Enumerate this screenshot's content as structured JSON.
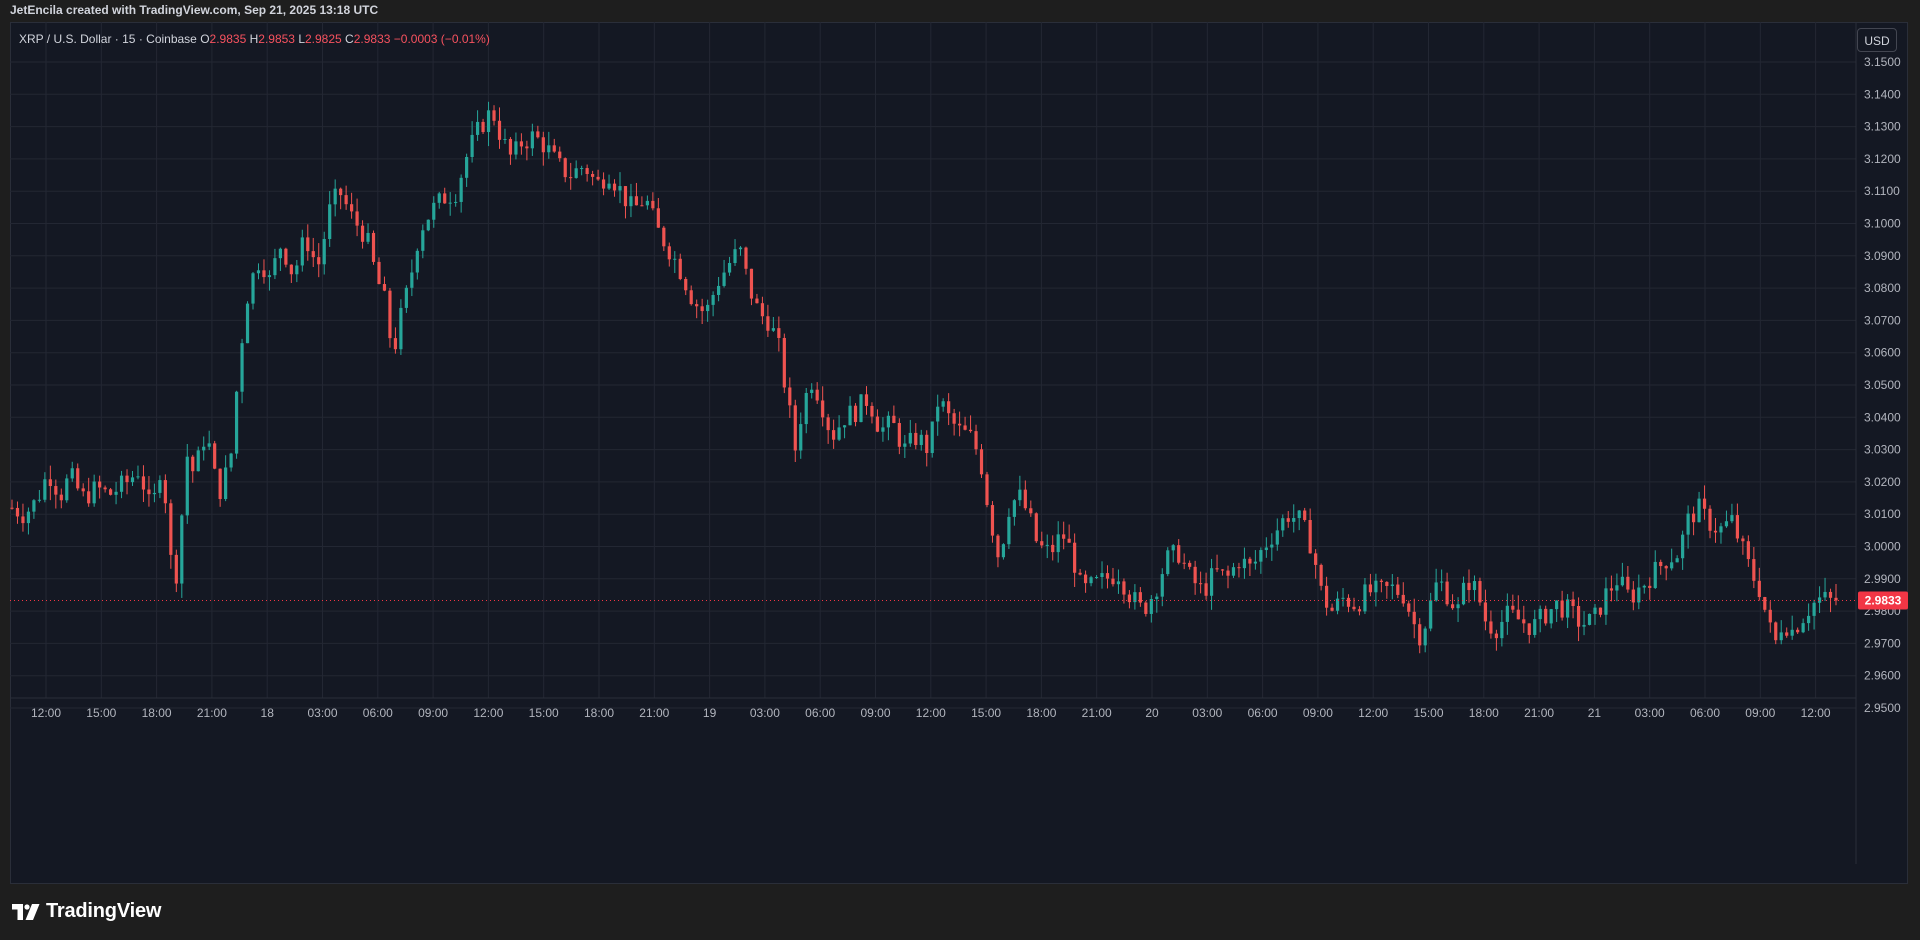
{
  "credit": "JetEncila created with TradingView.com, Sep 21, 2025 13:18 UTC",
  "legend": {
    "symbol": "XRP / U.S. Dollar · 15 · Coinbase",
    "o_label": "O",
    "o_value": "2.9835",
    "h_label": "H",
    "h_value": "2.9853",
    "l_label": "L",
    "l_value": "2.9825",
    "c_label": "C",
    "c_value": "2.9833",
    "change": "−0.0003 (−0.01%)"
  },
  "currency_button": "USD",
  "brand": "TradingView",
  "colors": {
    "up": "#26a69a",
    "down": "#ef5350",
    "background": "#141823",
    "grid": "#232733",
    "price_tag": "#f23645"
  },
  "chart_data": {
    "type": "candlestick",
    "title": "XRP / U.S. Dollar · 15 · Coinbase",
    "interval": "15",
    "ylim": [
      2.945,
      3.155
    ],
    "y_ticks": [
      "3.1500",
      "3.1400",
      "3.1300",
      "3.1200",
      "3.1100",
      "3.1000",
      "3.0900",
      "3.0800",
      "3.0700",
      "3.0600",
      "3.0500",
      "3.0400",
      "3.0300",
      "3.0200",
      "3.0100",
      "3.0000",
      "2.9900",
      "2.9800",
      "2.9700",
      "2.9600",
      "2.9500"
    ],
    "x_ticks": [
      "12:00",
      "15:00",
      "18:00",
      "21:00",
      "18",
      "03:00",
      "06:00",
      "09:00",
      "12:00",
      "15:00",
      "18:00",
      "21:00",
      "19",
      "03:00",
      "06:00",
      "09:00",
      "12:00",
      "15:00",
      "18:00",
      "21:00",
      "20",
      "03:00",
      "06:00",
      "09:00",
      "12:00",
      "15:00",
      "18:00",
      "21:00",
      "21",
      "03:00",
      "06:00",
      "09:00",
      "12:00"
    ],
    "last_price": "2.9833",
    "last_price_value": 2.9833,
    "close_path": [
      [
        0,
        3.012
      ],
      [
        10,
        3.01
      ],
      [
        20,
        3.014
      ],
      [
        30,
        3.023
      ],
      [
        40,
        3.016
      ],
      [
        48,
        3.022
      ],
      [
        58,
        3.015
      ],
      [
        70,
        3.018
      ],
      [
        80,
        3.016
      ],
      [
        95,
        3.02
      ],
      [
        105,
        3.024
      ],
      [
        115,
        3.01
      ],
      [
        125,
        3.03
      ],
      [
        128,
        3.0
      ],
      [
        135,
        2.99
      ],
      [
        140,
        3.01
      ],
      [
        145,
        3.03
      ],
      [
        150,
        3.022
      ],
      [
        160,
        3.036
      ],
      [
        170,
        3.016
      ],
      [
        180,
        3.026
      ],
      [
        188,
        3.06
      ],
      [
        195,
        3.08
      ],
      [
        205,
        3.09
      ],
      [
        212,
        3.082
      ],
      [
        222,
        3.094
      ],
      [
        232,
        3.084
      ],
      [
        242,
        3.096
      ],
      [
        252,
        3.086
      ],
      [
        262,
        3.104
      ],
      [
        270,
        3.11
      ],
      [
        280,
        3.102
      ],
      [
        292,
        3.096
      ],
      [
        300,
        3.084
      ],
      [
        308,
        3.075
      ],
      [
        314,
        3.059
      ],
      [
        320,
        3.07
      ],
      [
        328,
        3.082
      ],
      [
        336,
        3.098
      ],
      [
        346,
        3.104
      ],
      [
        356,
        3.108
      ],
      [
        366,
        3.11
      ],
      [
        376,
        3.122
      ],
      [
        386,
        3.13
      ],
      [
        396,
        3.135
      ],
      [
        404,
        3.126
      ],
      [
        412,
        3.12
      ],
      [
        420,
        3.125
      ],
      [
        430,
        3.127
      ],
      [
        440,
        3.124
      ],
      [
        450,
        3.118
      ],
      [
        460,
        3.115
      ],
      [
        472,
        3.118
      ],
      [
        482,
        3.112
      ],
      [
        492,
        3.116
      ],
      [
        502,
        3.11
      ],
      [
        512,
        3.104
      ],
      [
        522,
        3.108
      ],
      [
        532,
        3.098
      ],
      [
        542,
        3.092
      ],
      [
        552,
        3.085
      ],
      [
        562,
        3.076
      ],
      [
        572,
        3.072
      ],
      [
        582,
        3.082
      ],
      [
        592,
        3.088
      ],
      [
        600,
        3.092
      ],
      [
        608,
        3.08
      ],
      [
        616,
        3.072
      ],
      [
        624,
        3.07
      ],
      [
        632,
        3.062
      ],
      [
        640,
        3.044
      ],
      [
        646,
        3.03
      ],
      [
        652,
        3.044
      ],
      [
        660,
        3.052
      ],
      [
        668,
        3.044
      ],
      [
        676,
        3.034
      ],
      [
        686,
        3.04
      ],
      [
        696,
        3.042
      ],
      [
        706,
        3.046
      ],
      [
        716,
        3.036
      ],
      [
        726,
        3.038
      ],
      [
        736,
        3.03
      ],
      [
        746,
        3.034
      ],
      [
        756,
        3.03
      ],
      [
        764,
        3.046
      ],
      [
        772,
        3.04
      ],
      [
        780,
        3.036
      ],
      [
        790,
        3.034
      ],
      [
        798,
        3.028
      ],
      [
        806,
        3.01
      ],
      [
        814,
        2.996
      ],
      [
        822,
        3.012
      ],
      [
        830,
        3.016
      ],
      [
        838,
        3.01
      ],
      [
        846,
        3.0
      ],
      [
        856,
        2.998
      ],
      [
        866,
        3.004
      ],
      [
        874,
        2.998
      ],
      [
        882,
        2.986
      ],
      [
        892,
        2.988
      ],
      [
        902,
        2.99
      ],
      [
        912,
        2.992
      ],
      [
        922,
        2.985
      ],
      [
        932,
        2.98
      ],
      [
        942,
        2.986
      ],
      [
        952,
        2.996
      ],
      [
        962,
        2.998
      ],
      [
        972,
        2.99
      ],
      [
        982,
        2.986
      ],
      [
        992,
        2.992
      ],
      [
        1002,
        2.99
      ],
      [
        1012,
        2.996
      ],
      [
        1022,
        2.993
      ],
      [
        1032,
        3.0
      ],
      [
        1042,
        3.005
      ],
      [
        1052,
        3.01
      ],
      [
        1062,
        3.008
      ],
      [
        1072,
        3.0
      ],
      [
        1080,
        2.985
      ],
      [
        1088,
        2.98
      ],
      [
        1098,
        2.984
      ],
      [
        1108,
        2.982
      ],
      [
        1118,
        2.986
      ],
      [
        1128,
        2.986
      ],
      [
        1138,
        2.987
      ],
      [
        1148,
        2.985
      ],
      [
        1156,
        2.976
      ],
      [
        1162,
        2.972
      ],
      [
        1168,
        2.98
      ],
      [
        1176,
        2.99
      ],
      [
        1184,
        2.985
      ],
      [
        1192,
        2.98
      ],
      [
        1200,
        2.99
      ],
      [
        1208,
        2.986
      ],
      [
        1216,
        2.976
      ],
      [
        1224,
        2.975
      ],
      [
        1234,
        2.979
      ],
      [
        1244,
        2.977
      ],
      [
        1254,
        2.975
      ],
      [
        1264,
        2.979
      ],
      [
        1274,
        2.982
      ],
      [
        1284,
        2.98
      ],
      [
        1294,
        2.976
      ],
      [
        1304,
        2.977
      ],
      [
        1314,
        2.985
      ],
      [
        1324,
        2.99
      ],
      [
        1334,
        2.984
      ],
      [
        1344,
        2.988
      ],
      [
        1354,
        2.992
      ],
      [
        1364,
        2.996
      ],
      [
        1374,
        2.998
      ],
      [
        1382,
        3.008
      ],
      [
        1390,
        3.012
      ],
      [
        1398,
        3.008
      ],
      [
        1408,
        3.005
      ],
      [
        1418,
        3.008
      ],
      [
        1426,
        3.0
      ],
      [
        1434,
        2.992
      ],
      [
        1442,
        2.986
      ],
      [
        1448,
        2.976
      ],
      [
        1454,
        2.97
      ],
      [
        1460,
        2.977
      ],
      [
        1468,
        2.974
      ],
      [
        1476,
        2.978
      ],
      [
        1484,
        2.982
      ],
      [
        1492,
        2.984
      ],
      [
        1500,
        2.983
      ],
      [
        1504,
        2.9833
      ]
    ],
    "notes": "Each entry is [relative time position from first candle (0) to last candle (1504), close price]."
  }
}
